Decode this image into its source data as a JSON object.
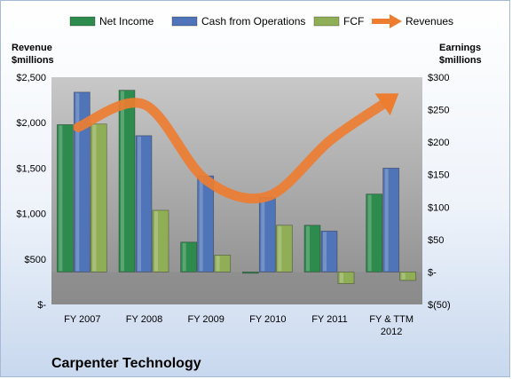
{
  "chart_data": {
    "type": "bar",
    "categories": [
      "FY 2007",
      "FY 2008",
      "FY 2009",
      "FY 2010",
      "FY 2011",
      "FY & TTM 2012"
    ],
    "series": [
      {
        "name": "Net Income",
        "axis": "right",
        "mark": "bar",
        "color": "#2e8b4e",
        "values": [
          227,
          280,
          46,
          -2,
          72,
          120
        ]
      },
      {
        "name": "Cash from Operations",
        "axis": "right",
        "mark": "bar",
        "color": "#4f74b8",
        "values": [
          277,
          210,
          148,
          115,
          63,
          160
        ]
      },
      {
        "name": "FCF",
        "axis": "right",
        "mark": "bar",
        "color": "#8fae55",
        "values": [
          228,
          95,
          26,
          72,
          -18,
          -13
        ]
      },
      {
        "name": "Revenues",
        "axis": "left",
        "mark": "arrow-line",
        "color": "#ed7d31",
        "values": [
          1950,
          2200,
          1370,
          1190,
          1800,
          2200
        ]
      }
    ],
    "left_axis": {
      "title_line1": "Revenue",
      "title_line2": "$millions",
      "ylim": [
        0,
        2500
      ],
      "ticks": [
        0,
        500,
        1000,
        1500,
        2000,
        2500
      ],
      "tick_labels": [
        "$-",
        "$500",
        "$1,000",
        "$1,500",
        "$2,000",
        "$2,500"
      ]
    },
    "right_axis": {
      "title_line1": "Earnings",
      "title_line2": "$millions",
      "ylim": [
        -50,
        300
      ],
      "ticks": [
        -50,
        0,
        50,
        100,
        150,
        200,
        250,
        300
      ],
      "tick_labels": [
        "$(50)",
        "$-",
        "$50",
        "$100",
        "$150",
        "$200",
        "$250",
        "$300"
      ]
    },
    "category_labels": [
      [
        "FY 2007"
      ],
      [
        "FY 2008"
      ],
      [
        "FY 2009"
      ],
      [
        "FY 2010"
      ],
      [
        "FY 2011"
      ],
      [
        "FY & TTM",
        "2012"
      ]
    ],
    "legend_position": "top",
    "company": "Carpenter Technology"
  }
}
